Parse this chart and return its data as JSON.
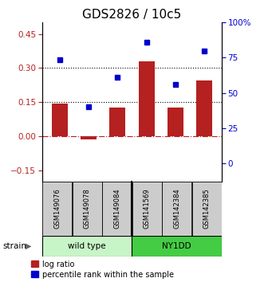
{
  "title": "GDS2826 / 10c5",
  "categories": [
    "GSM149076",
    "GSM149078",
    "GSM149084",
    "GSM141569",
    "GSM142384",
    "GSM142385"
  ],
  "log_ratio": [
    0.143,
    -0.013,
    0.125,
    0.33,
    0.125,
    0.245
  ],
  "percentile_rank": [
    73.5,
    40.0,
    61.0,
    86.0,
    56.0,
    80.0
  ],
  "left_ylim": [
    -0.2,
    0.5
  ],
  "left_yticks": [
    -0.15,
    0.0,
    0.15,
    0.3,
    0.45
  ],
  "right_ylim": [
    -13.33,
    100.0
  ],
  "right_yticks": [
    0,
    25,
    50,
    75,
    100
  ],
  "hline_y": [
    0.15,
    0.3
  ],
  "zero_line_y": 0.0,
  "bar_color": "#b52020",
  "dot_color": "#0000cc",
  "wild_type_label": "wild type",
  "ny1dd_label": "NY1DD",
  "wild_type_color": "#c8f5c8",
  "ny1dd_color": "#44cc44",
  "strain_label": "strain",
  "legend_red_label": "log ratio",
  "legend_blue_label": "percentile rank within the sample",
  "title_fontsize": 11,
  "tick_fontsize": 7.5,
  "label_fontsize": 7.5,
  "strain_fontsize": 7.5,
  "legend_fontsize": 7
}
